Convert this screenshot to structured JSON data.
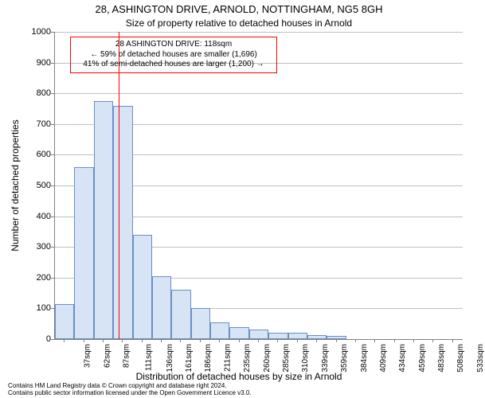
{
  "title": "28, ASHINGTON DRIVE, ARNOLD, NOTTINGHAM, NG5 8GH",
  "subtitle": "Size of property relative to detached houses in Arnold",
  "ylabel": "Number of detached properties",
  "xlabel": "Distribution of detached houses by size in Arnold",
  "chart": {
    "type": "histogram",
    "background_color": "#ffffff",
    "grid_color": "#bfbfbf",
    "axis_color": "#808080",
    "bar_fill": "#d6e4f5",
    "bar_border": "#6a8fc4",
    "bar_border_width": 1,
    "ylim": [
      0,
      1000
    ],
    "ytick_step": 100,
    "x_tick_labels": [
      "37sqm",
      "62sqm",
      "87sqm",
      "111sqm",
      "136sqm",
      "161sqm",
      "186sqm",
      "211sqm",
      "235sqm",
      "260sqm",
      "285sqm",
      "310sqm",
      "339sqm",
      "359sqm",
      "384sqm",
      "409sqm",
      "434sqm",
      "459sqm",
      "483sqm",
      "508sqm",
      "533sqm"
    ],
    "values": [
      115,
      560,
      775,
      760,
      340,
      205,
      160,
      100,
      55,
      40,
      30,
      20,
      20,
      14,
      10,
      2,
      0,
      0,
      0,
      0,
      0
    ],
    "marker": {
      "bar_index": 3,
      "fraction_into_bar": 0.28,
      "color": "#ff0000",
      "width": 1
    }
  },
  "annotation": {
    "lines": [
      "28 ASHINGTON DRIVE: 118sqm",
      "← 59% of detached houses are smaller (1,696)",
      "41% of semi-detached houses are larger (1,200) →"
    ],
    "border_color": "#ff0000",
    "text_color": "#000000"
  },
  "footer": {
    "line1": "Contains HM Land Registry data © Crown copyright and database right 2024.",
    "line2": "Contains public sector information licensed under the Open Government Licence v3.0."
  },
  "fonts": {
    "title_size": 13,
    "subtitle_size": 12,
    "label_size": 12,
    "tick_size": 11,
    "xtick_size": 10,
    "anno_size": 10,
    "footer_size": 8
  }
}
